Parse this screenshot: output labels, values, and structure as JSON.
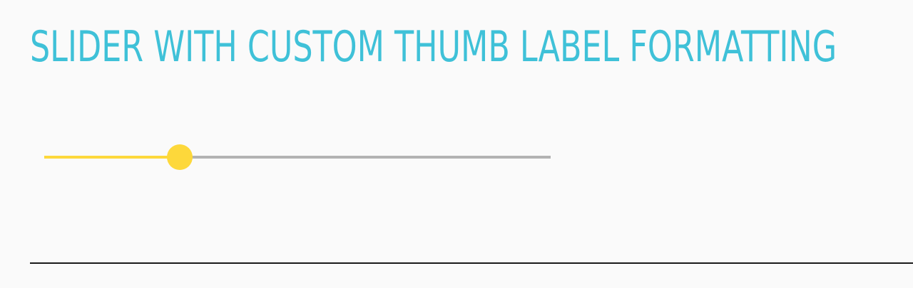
{
  "header": {
    "title": "SLIDER WITH CUSTOM THUMB LABEL FORMATTING"
  },
  "slider": {
    "value_fraction": 0.268,
    "fill_color": "#fdd83b",
    "thumb_color": "#fdd83b",
    "track_color": "#b3b3b3"
  },
  "colors": {
    "title": "#3fc1d8",
    "background": "#fafafa",
    "divider": "#1a1a1a"
  }
}
